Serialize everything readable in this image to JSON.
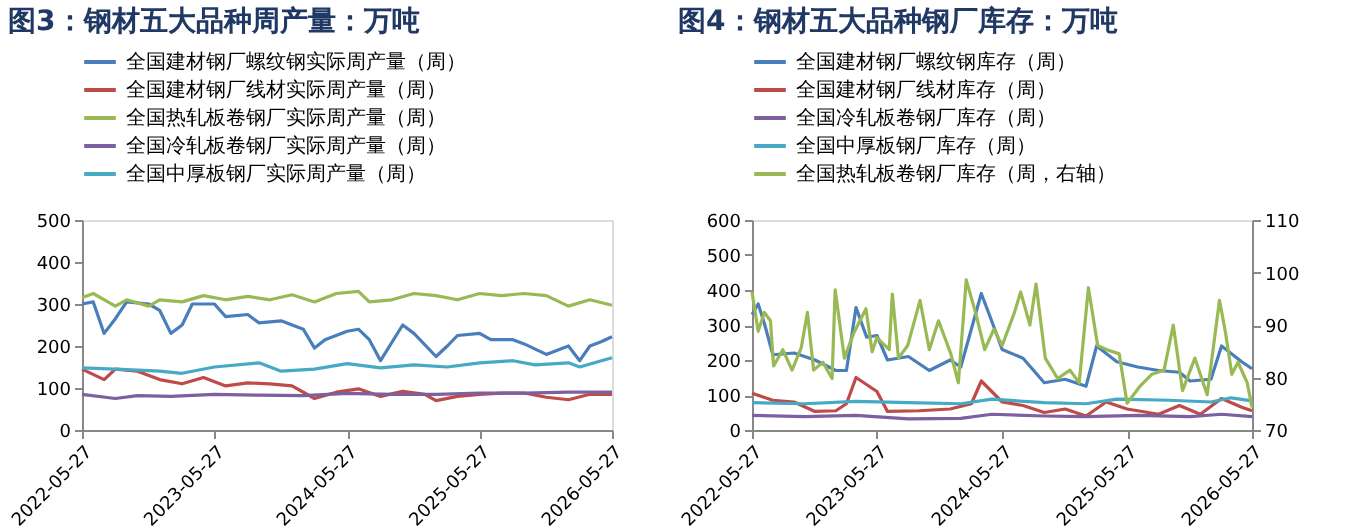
{
  "chart_data": [
    {
      "type": "line",
      "title": "图3：钢材五大品种周产量：万吨",
      "legend": "top",
      "grid": false,
      "marker": "none",
      "line_style": "solid",
      "xlim": [
        "2022-05-27",
        "2026-05-27"
      ],
      "xticks": [
        "2022-05-27",
        "2023-05-27",
        "2024-05-27",
        "2025-05-27",
        "2026-05-27"
      ],
      "ylim": [
        0,
        500
      ],
      "yticks": [
        0,
        100,
        200,
        300,
        400,
        500
      ],
      "series": [
        {
          "name": "全国建材钢厂螺纹钢实际周产量（周）",
          "color": "#4a7ebb",
          "x": [
            "2022-05-27",
            "2022-06-27",
            "2022-07-27",
            "2022-08-27",
            "2022-09-27",
            "2022-11-27",
            "2022-12-27",
            "2023-01-27",
            "2023-02-27",
            "2023-03-27",
            "2023-05-27",
            "2023-06-27",
            "2023-08-27",
            "2023-09-27",
            "2023-11-27",
            "2024-01-27",
            "2024-02-27",
            "2024-03-27",
            "2024-05-27",
            "2024-06-27",
            "2024-07-27",
            "2024-08-27",
            "2024-10-27",
            "2024-11-27",
            "2025-01-27",
            "2025-02-27",
            "2025-03-27",
            "2025-05-27",
            "2025-06-27",
            "2025-08-27",
            "2025-09-27",
            "2025-11-27",
            "2026-01-27",
            "2026-02-27",
            "2026-03-27",
            "2026-04-27",
            "2026-05-27"
          ],
          "values": [
            300,
            305,
            230,
            265,
            305,
            300,
            285,
            230,
            250,
            300,
            300,
            270,
            275,
            255,
            260,
            240,
            195,
            215,
            235,
            240,
            215,
            165,
            250,
            230,
            175,
            200,
            225,
            230,
            215,
            215,
            205,
            180,
            200,
            165,
            200,
            210,
            222
          ]
        },
        {
          "name": "全国建材钢厂线材实际周产量（周）",
          "color": "#be4b48",
          "x": [
            "2022-05-27",
            "2022-07-27",
            "2022-08-27",
            "2022-10-27",
            "2022-12-27",
            "2023-02-27",
            "2023-04-27",
            "2023-06-27",
            "2023-08-27",
            "2023-10-27",
            "2023-12-27",
            "2024-02-27",
            "2024-04-27",
            "2024-06-27",
            "2024-08-27",
            "2024-10-27",
            "2024-12-27",
            "2025-01-27",
            "2025-03-27",
            "2025-05-27",
            "2025-07-27",
            "2025-09-27",
            "2025-11-27",
            "2026-01-27",
            "2026-03-27",
            "2026-05-27"
          ],
          "values": [
            145,
            120,
            145,
            140,
            120,
            110,
            125,
            105,
            112,
            110,
            105,
            75,
            90,
            98,
            80,
            92,
            85,
            70,
            80,
            85,
            88,
            88,
            78,
            72,
            85,
            85
          ]
        },
        {
          "name": "全国热轧板卷钢厂实际周产量（周）",
          "color": "#98b954",
          "x": [
            "2022-05-27",
            "2022-06-27",
            "2022-08-27",
            "2022-09-27",
            "2022-11-27",
            "2022-12-27",
            "2023-02-27",
            "2023-04-27",
            "2023-06-27",
            "2023-08-27",
            "2023-10-27",
            "2023-12-27",
            "2024-02-27",
            "2024-04-27",
            "2024-06-27",
            "2024-07-27",
            "2024-09-27",
            "2024-11-27",
            "2025-01-27",
            "2025-03-27",
            "2025-05-27",
            "2025-07-27",
            "2025-09-27",
            "2025-11-27",
            "2026-01-27",
            "2026-03-27",
            "2026-05-27"
          ],
          "values": [
            315,
            325,
            295,
            310,
            295,
            310,
            305,
            320,
            310,
            318,
            310,
            322,
            305,
            325,
            330,
            305,
            310,
            325,
            320,
            310,
            325,
            320,
            325,
            320,
            295,
            310,
            297
          ]
        },
        {
          "name": "全国冷轧板卷钢厂实际周产量（周）",
          "color": "#7d60a0",
          "x": [
            "2022-05-27",
            "2022-08-27",
            "2022-10-27",
            "2023-01-27",
            "2023-05-27",
            "2023-09-27",
            "2024-01-27",
            "2024-05-27",
            "2024-09-27",
            "2025-01-27",
            "2025-05-27",
            "2025-09-27",
            "2026-01-27",
            "2026-05-27"
          ],
          "values": [
            85,
            75,
            82,
            80,
            85,
            83,
            82,
            87,
            85,
            85,
            88,
            88,
            90,
            90
          ]
        },
        {
          "name": "全国中厚板钢厂实际周产量（周）",
          "color": "#46aac5",
          "x": [
            "2022-05-27",
            "2022-08-27",
            "2022-12-27",
            "2023-02-27",
            "2023-05-27",
            "2023-09-27",
            "2023-11-27",
            "2024-02-27",
            "2024-05-27",
            "2024-08-27",
            "2024-11-27",
            "2025-02-27",
            "2025-05-27",
            "2025-08-27",
            "2025-10-27",
            "2026-01-27",
            "2026-02-27",
            "2026-05-27"
          ],
          "values": [
            148,
            145,
            140,
            135,
            150,
            160,
            140,
            145,
            158,
            148,
            155,
            150,
            160,
            165,
            155,
            160,
            150,
            172
          ]
        }
      ]
    },
    {
      "type": "line",
      "title": "图4：钢材五大品种钢厂库存：万吨",
      "legend": "top",
      "grid": false,
      "marker": "none",
      "line_style": "solid",
      "xlim": [
        "2022-05-27",
        "2026-05-27"
      ],
      "xticks": [
        "2022-05-27",
        "2023-05-27",
        "2024-05-27",
        "2025-05-27",
        "2026-05-27"
      ],
      "ylim": [
        0,
        600
      ],
      "yticks": [
        0,
        100,
        200,
        300,
        400,
        500,
        600
      ],
      "y2lim": [
        70,
        110
      ],
      "y2ticks": [
        70,
        80,
        90,
        100,
        110
      ],
      "series": [
        {
          "name": "全国建材钢厂螺纹钢库存（周）",
          "color": "#4a7ebb",
          "x": [
            "2022-05-27",
            "2022-06-14",
            "2022-07-02",
            "2022-07-27",
            "2022-09-27",
            "2022-11-27",
            "2023-01-27",
            "2023-02-27",
            "2023-03-27",
            "2023-04-27",
            "2023-05-27",
            "2023-06-27",
            "2023-08-27",
            "2023-10-27",
            "2023-12-27",
            "2024-01-27",
            "2024-03-27",
            "2024-04-27",
            "2024-05-27",
            "2024-07-27",
            "2024-09-27",
            "2024-11-27",
            "2025-01-27",
            "2025-02-27",
            "2025-04-27",
            "2025-06-27",
            "2025-08-27",
            "2025-10-27",
            "2025-11-27",
            "2026-01-27",
            "2026-02-27",
            "2026-04-27",
            "2026-05-27"
          ],
          "values": [
            330,
            360,
            305,
            215,
            220,
            200,
            170,
            170,
            350,
            265,
            270,
            200,
            210,
            170,
            200,
            180,
            390,
            310,
            230,
            205,
            135,
            145,
            125,
            240,
            195,
            180,
            170,
            165,
            140,
            145,
            240,
            195,
            175
          ]
        },
        {
          "name": "全国建材钢厂线材库存（周）",
          "color": "#be4b48",
          "x": [
            "2022-05-27",
            "2022-07-27",
            "2022-09-27",
            "2022-11-27",
            "2023-01-27",
            "2023-02-27",
            "2023-03-27",
            "2023-05-27",
            "2023-06-27",
            "2023-09-27",
            "2023-12-27",
            "2024-02-27",
            "2024-03-27",
            "2024-05-27",
            "2024-07-27",
            "2024-09-27",
            "2024-11-27",
            "2025-01-27",
            "2025-03-27",
            "2025-05-27",
            "2025-08-27",
            "2025-10-27",
            "2025-12-27",
            "2026-02-27",
            "2026-04-27",
            "2026-05-27"
          ],
          "values": [
            105,
            85,
            80,
            53,
            55,
            75,
            150,
            110,
            53,
            55,
            60,
            75,
            140,
            80,
            70,
            50,
            60,
            40,
            80,
            60,
            45,
            70,
            45,
            90,
            65,
            55
          ]
        },
        {
          "name": "全国冷轧板卷钢厂库存（周）",
          "color": "#7d60a0",
          "x": [
            "2022-05-27",
            "2022-10-27",
            "2023-03-27",
            "2023-08-27",
            "2024-01-27",
            "2024-04-27",
            "2024-09-27",
            "2025-01-27",
            "2025-06-27",
            "2025-11-27",
            "2026-02-27",
            "2026-05-27"
          ],
          "values": [
            42,
            38,
            42,
            32,
            33,
            45,
            40,
            38,
            42,
            38,
            45,
            38
          ]
        },
        {
          "name": "全国中厚板钢厂库存（周）",
          "color": "#46aac5",
          "x": [
            "2022-05-27",
            "2022-10-27",
            "2023-03-27",
            "2023-08-27",
            "2024-01-27",
            "2024-04-27",
            "2024-09-27",
            "2025-01-27",
            "2025-04-27",
            "2025-09-27",
            "2026-01-27",
            "2026-03-27",
            "2026-05-27"
          ],
          "values": [
            78,
            75,
            82,
            78,
            75,
            88,
            78,
            75,
            88,
            85,
            80,
            92,
            83
          ]
        },
        {
          "name": "全国热轧板卷钢厂库存（周，右轴）",
          "color": "#98b954",
          "axis": "y2",
          "x": [
            "2022-05-27",
            "2022-06-14",
            "2022-07-02",
            "2022-07-20",
            "2022-07-29",
            "2022-08-25",
            "2022-09-21",
            "2022-10-18",
            "2022-11-05",
            "2022-11-23",
            "2022-12-20",
            "2023-01-16",
            "2023-01-25",
            "2023-02-21",
            "2023-03-20",
            "2023-04-25",
            "2023-05-13",
            "2023-05-27",
            "2023-07-02",
            "2023-07-11",
            "2023-07-29",
            "2023-08-25",
            "2023-09-30",
            "2023-10-27",
            "2023-11-23",
            "2023-12-29",
            "2024-01-20",
            "2024-02-12",
            "2024-03-10",
            "2024-04-06",
            "2024-05-03",
            "2024-05-27",
            "2024-07-02",
            "2024-07-20",
            "2024-08-16",
            "2024-09-03",
            "2024-09-30",
            "2024-11-05",
            "2024-12-11",
            "2025-01-07",
            "2025-02-03",
            "2025-03-02",
            "2025-03-29",
            "2025-05-04",
            "2025-05-27",
            "2025-07-02",
            "2025-08-07",
            "2025-09-12",
            "2025-10-09",
            "2025-11-05",
            "2025-12-11",
            "2026-01-16",
            "2026-02-21",
            "2026-03-11",
            "2026-03-29",
            "2026-04-16",
            "2026-05-13",
            "2026-05-27"
          ],
          "values": [
            96.3,
            88.8,
            92.4,
            90.8,
            82.2,
            85.3,
            81.4,
            85.7,
            92.4,
            81.4,
            82.9,
            79.8,
            96.7,
            83.7,
            88.4,
            93.1,
            84.9,
            87.6,
            85.3,
            95.9,
            83.7,
            86.1,
            94.7,
            85.3,
            90.8,
            84.5,
            79.0,
            98.6,
            92.4,
            85.3,
            89.2,
            86.1,
            92.4,
            96.3,
            90.0,
            97.8,
            83.7,
            79.8,
            81.4,
            79.0,
            97.1,
            86.1,
            85.3,
            84.5,
            75.1,
            78.2,
            80.6,
            81.4,
            90.0,
            77.5,
            83.7,
            76.7,
            94.7,
            88.4,
            80.6,
            82.9,
            79.0,
            74.3
          ]
        }
      ]
    }
  ]
}
